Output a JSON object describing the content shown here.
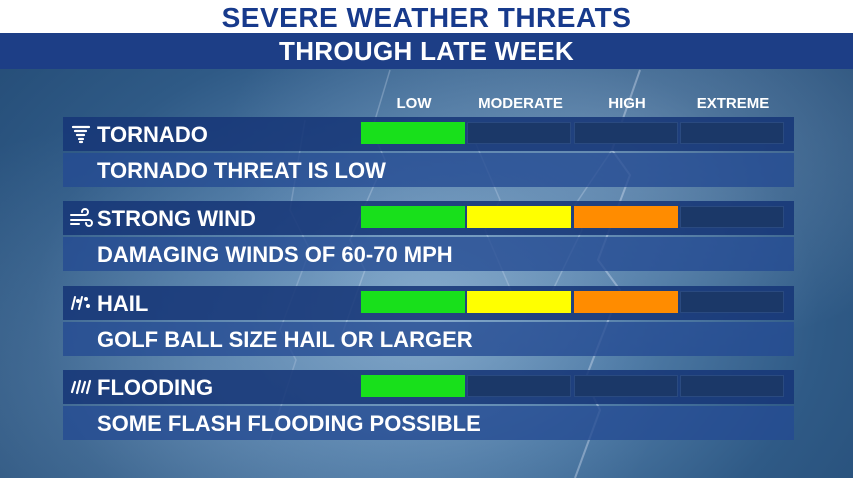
{
  "header": {
    "title": "SEVERE WEATHER THREATS",
    "subtitle": "THROUGH LATE WEEK"
  },
  "levels": [
    "LOW",
    "MODERATE",
    "HIGH",
    "EXTREME"
  ],
  "level_colors": [
    "#18e01b",
    "#ffff00",
    "#ff8c00",
    "#e3141b"
  ],
  "empty_color": "#1b3868",
  "threats": [
    {
      "name": "TORNADO",
      "icon": "tornado-icon",
      "level": 1,
      "description": "TORNADO THREAT IS LOW"
    },
    {
      "name": "STRONG WIND",
      "icon": "wind-icon",
      "level": 3,
      "description": "DAMAGING WINDS OF 60-70 MPH"
    },
    {
      "name": "HAIL",
      "icon": "hail-icon",
      "level": 3,
      "description": "GOLF BALL SIZE HAIL OR LARGER"
    },
    {
      "name": "FLOODING",
      "icon": "rain-icon",
      "level": 1,
      "description": "SOME FLASH FLOODING POSSIBLE"
    }
  ]
}
